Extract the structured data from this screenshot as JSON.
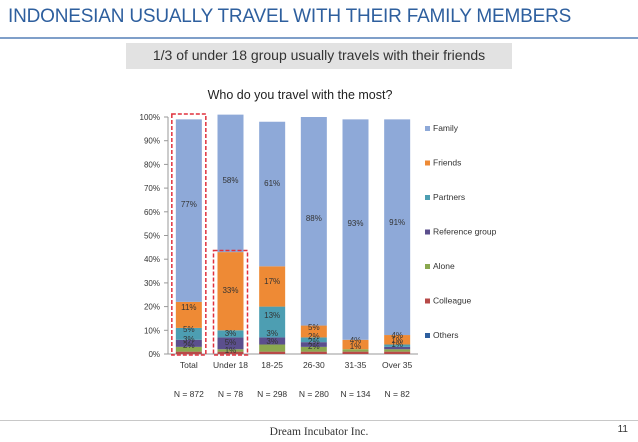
{
  "header": {
    "title": "INDONESIAN USUALLY TRAVEL WITH THEIR FAMILY MEMBERS",
    "subtitle": "1/3 of under 18 group usually travels with their friends"
  },
  "footer": {
    "company": "Dream Incubator Inc.",
    "page_number": "11"
  },
  "colors": {
    "Family": "#8ea9d8",
    "Friends": "#ee8a35",
    "Partners": "#4d9eb2",
    "Reference group": "#5b4f8d",
    "Alone": "#8aa84f",
    "Colleague": "#b74a48",
    "Others": "#2e5f9e",
    "highlight": "#e0313d"
  },
  "chart_data": {
    "type": "bar",
    "stacked": true,
    "title": "Who do you travel with the most?",
    "categories": [
      "Total",
      "Under 18",
      "18-25",
      "26-30",
      "31-35",
      "Over 35"
    ],
    "sample_sizes": [
      "N = 872",
      "N = 78",
      "N = 298",
      "N = 280",
      "N = 134",
      "N = 82"
    ],
    "yticks": [
      "0%",
      "10%",
      "20%",
      "30%",
      "40%",
      "50%",
      "60%",
      "70%",
      "80%",
      "90%",
      "100%"
    ],
    "ylim": [
      0,
      100
    ],
    "legend_position": "right",
    "legend": [
      "Family",
      "Friends",
      "Partners",
      "Reference group",
      "Alone",
      "Colleague",
      "Others"
    ],
    "series": [
      {
        "name": "Others",
        "values": [
          0,
          0,
          0,
          0,
          0,
          0
        ]
      },
      {
        "name": "Colleague",
        "values": [
          1,
          1,
          1,
          1,
          1,
          1
        ]
      },
      {
        "name": "Alone",
        "values": [
          2,
          1,
          3,
          2,
          1,
          1
        ]
      },
      {
        "name": "Reference group",
        "values": [
          3,
          5,
          3,
          2,
          0,
          1
        ]
      },
      {
        "name": "Partners",
        "values": [
          5,
          3,
          13,
          2,
          0,
          1
        ]
      },
      {
        "name": "Friends",
        "values": [
          11,
          33,
          17,
          5,
          4,
          4
        ]
      },
      {
        "name": "Family",
        "values": [
          77,
          58,
          61,
          88,
          93,
          91
        ]
      }
    ],
    "data_labels": [
      [
        [
          "77%",
          207
        ],
        [
          "11%",
          310
        ],
        [
          "5%",
          332
        ],
        [
          "3%",
          342
        ],
        [
          "2%",
          348
        ]
      ],
      [
        [
          "58%",
          183
        ],
        [
          "33%",
          293
        ],
        [
          "3%",
          336
        ],
        [
          "5%",
          345
        ],
        [
          "1%",
          353
        ]
      ],
      [
        [
          "61%",
          186
        ],
        [
          "17%",
          284
        ],
        [
          "13%",
          318
        ],
        [
          "3%",
          336
        ],
        [
          "3%",
          344
        ]
      ],
      [
        [
          "88%",
          221
        ],
        [
          "5%",
          330
        ],
        [
          "2%",
          339
        ],
        [
          "2%",
          344
        ],
        [
          "2%",
          349
        ]
      ],
      [
        [
          "93%",
          226
        ],
        [
          "4%",
          343
        ],
        [
          "1%",
          349
        ]
      ],
      [
        [
          "91%",
          225
        ],
        [
          "4%",
          338
        ],
        [
          "1%",
          343
        ],
        [
          "1%",
          347
        ]
      ]
    ],
    "highlighted_categories": [
      "Total",
      "Under 18"
    ]
  }
}
